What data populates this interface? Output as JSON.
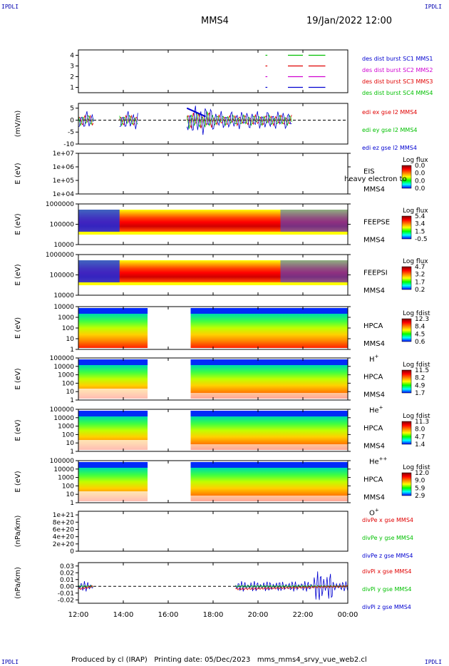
{
  "header": {
    "corner_label": "IPDLI",
    "spacecraft": "MMS4",
    "datetime": "19/Jan/2022 12:00"
  },
  "footer": {
    "text": "Produced by cl (IRAP)   Printing date: 05/Dec/2023   mms_mms4_srvy_vue_web2.cl"
  },
  "colors": {
    "red": "#e00000",
    "green": "#00c000",
    "blue": "#0000d0",
    "magenta": "#d000d0",
    "spectrogram_scale": [
      "#0000ff",
      "#00ffff",
      "#00ff00",
      "#ffff00",
      "#ff8000",
      "#ff0000",
      "#800000"
    ]
  },
  "chart_data": {
    "type": "multi-panel",
    "time_axis": {
      "range": [
        "12:00",
        "00:00"
      ],
      "ticks": [
        "12:00",
        "14:00",
        "16:00",
        "18:00",
        "20:00",
        "22:00",
        "00:00"
      ]
    },
    "panels": [
      {
        "id": "burst",
        "type": "bar-timeline",
        "ylabel": "",
        "yticks": [
          "4",
          "3",
          "2",
          "1"
        ],
        "ylim": [
          0.5,
          4.5
        ],
        "legend": [
          {
            "label": "des dist burst SC1 MMS1",
            "color": "#0000d0"
          },
          {
            "label": "des dist burst SC2 MMS2",
            "color": "#d000d0"
          },
          {
            "label": "des dist burst SC3 MMS3",
            "color": "#e00000"
          },
          {
            "label": "des dist burst SC4 MMS4",
            "color": "#00c000"
          }
        ],
        "intervals": [
          {
            "row": 4,
            "color": "#00c000",
            "spans": [
              [
                "20:20",
                "20:25"
              ],
              [
                "21:20",
                "22:00"
              ],
              [
                "22:15",
                "23:00"
              ]
            ]
          },
          {
            "row": 3,
            "color": "#e00000",
            "spans": [
              [
                "20:20",
                "20:25"
              ],
              [
                "21:20",
                "22:00"
              ],
              [
                "22:15",
                "23:00"
              ]
            ]
          },
          {
            "row": 2,
            "color": "#d000d0",
            "spans": [
              [
                "20:20",
                "20:25"
              ],
              [
                "21:20",
                "22:00"
              ],
              [
                "22:15",
                "23:00"
              ]
            ]
          },
          {
            "row": 1,
            "color": "#0000d0",
            "spans": [
              [
                "20:20",
                "20:25"
              ],
              [
                "21:20",
                "22:00"
              ],
              [
                "22:15",
                "23:00"
              ]
            ]
          }
        ]
      },
      {
        "id": "edi",
        "type": "line",
        "ylabel": "(mV/m)",
        "yticks": [
          "5",
          "0",
          "-5",
          "-10"
        ],
        "ylim": [
          -10,
          7
        ],
        "legend": [
          {
            "label": "edi ex gse l2 MMS4",
            "color": "#e00000"
          },
          {
            "label": "edi ey gse l2 MMS4",
            "color": "#00c000"
          },
          {
            "label": "edi ez gse l2 MMS4",
            "color": "#0000d0"
          }
        ]
      },
      {
        "id": "eis",
        "type": "spectrogram",
        "ylabel": "E (eV)",
        "yticks": [
          "1e+07",
          "1e+06",
          "1e+05",
          "1e+04"
        ],
        "instrument": [
          "EIS",
          "MMS4"
        ],
        "overlay_label": "heavy electron to",
        "colorbar": {
          "title": "Log flux",
          "ticks": [
            "0.0",
            "0.0",
            "0.0",
            "0.0"
          ]
        }
      },
      {
        "id": "feepse",
        "type": "spectrogram",
        "ylabel": "E (eV)",
        "yticks": [
          "1000000",
          "100000",
          "10000"
        ],
        "instrument": [
          "FEEPSE",
          "MMS4"
        ],
        "colorbar": {
          "title": "Log flux",
          "ticks": [
            "5.4",
            "3.4",
            "1.5",
            "-0.5"
          ]
        }
      },
      {
        "id": "feepsi",
        "type": "spectrogram",
        "ylabel": "E (eV)",
        "yticks": [
          "1000000",
          "100000",
          "10000"
        ],
        "instrument": [
          "FEEPSI",
          "MMS4"
        ],
        "colorbar": {
          "title": "Log flux",
          "ticks": [
            "4.7",
            "3.2",
            "1.7",
            "0.2"
          ]
        }
      },
      {
        "id": "hpca_h",
        "type": "spectrogram",
        "ylabel": "E (eV)",
        "yticks": [
          "10000",
          "1000",
          "100",
          "10",
          "1"
        ],
        "instrument": [
          "HPCA",
          "MMS4"
        ],
        "species": "H",
        "species_sup": "+",
        "colorbar": {
          "title": "Log fdist",
          "ticks": [
            "12.3",
            "8.4",
            "4.5",
            "0.6"
          ]
        }
      },
      {
        "id": "hpca_he",
        "type": "spectrogram",
        "ylabel": "E (eV)",
        "yticks": [
          "100000",
          "10000",
          "1000",
          "100",
          "10",
          "1"
        ],
        "instrument": [
          "HPCA",
          "MMS4"
        ],
        "species": "He",
        "species_sup": "+",
        "colorbar": {
          "title": "Log fdist",
          "ticks": [
            "11.5",
            "8.2",
            "4.9",
            "1.7"
          ]
        }
      },
      {
        "id": "hpca_hepp",
        "type": "spectrogram",
        "ylabel": "E (eV)",
        "yticks": [
          "100000",
          "10000",
          "1000",
          "100",
          "10",
          "1"
        ],
        "instrument": [
          "HPCA",
          "MMS4"
        ],
        "species": "He",
        "species_sup": "++",
        "colorbar": {
          "title": "Log fdist",
          "ticks": [
            "11.3",
            "8.0",
            "4.7",
            "1.4"
          ]
        }
      },
      {
        "id": "hpca_o",
        "type": "spectrogram",
        "ylabel": "E (eV)",
        "yticks": [
          "100000",
          "10000",
          "1000",
          "100",
          "10",
          "1"
        ],
        "instrument": [
          "HPCA",
          "MMS4"
        ],
        "species": "O",
        "species_sup": "+",
        "colorbar": {
          "title": "Log fdist",
          "ticks": [
            "12.0",
            "9.0",
            "5.9",
            "2.9"
          ]
        }
      },
      {
        "id": "divpe",
        "type": "line",
        "ylabel": "(nPa/km)",
        "yticks": [
          "1e+21",
          "8e+20",
          "6e+20",
          "4e+20",
          "2e+20",
          "0"
        ],
        "ylim": [
          0,
          1.1e+21
        ],
        "legend": [
          {
            "label": "divPe x gse MMS4",
            "color": "#e00000"
          },
          {
            "label": "divPe y gse MMS4",
            "color": "#00c000"
          },
          {
            "label": "divPe z gse MMS4",
            "color": "#0000d0"
          }
        ]
      },
      {
        "id": "divpi",
        "type": "line",
        "ylabel": "(nPa/km)",
        "yticks": [
          "0.03",
          "0.02",
          "0.01",
          "0.00",
          "-0.01",
          "-0.02"
        ],
        "ylim": [
          -0.025,
          0.035
        ],
        "legend": [
          {
            "label": "divPi x gse MMS4",
            "color": "#e00000"
          },
          {
            "label": "divPi y gse MMS4",
            "color": "#00c000"
          },
          {
            "label": "divPi z gse MMS4",
            "color": "#0000d0"
          }
        ]
      }
    ]
  }
}
